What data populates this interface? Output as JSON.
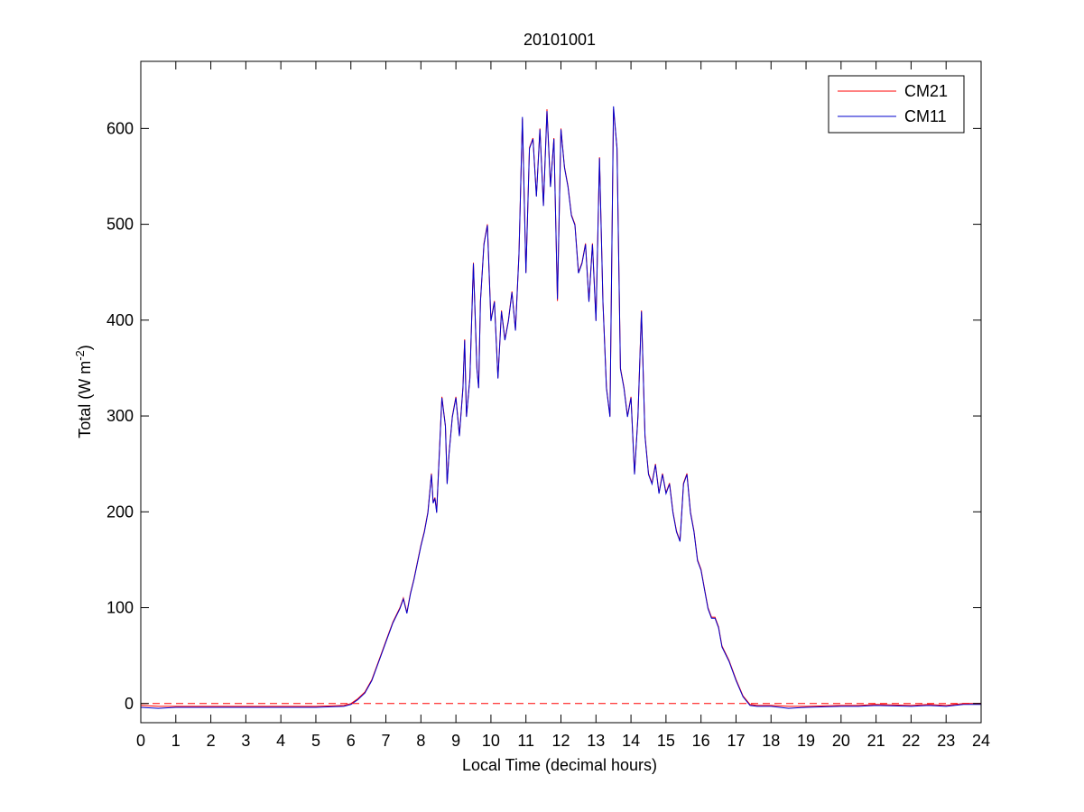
{
  "chart_data": {
    "type": "line",
    "title": "20101001",
    "xlabel": "Local Time (decimal hours)",
    "ylabel": "Total (W m",
    "ylabel_sup": "-2",
    "ylabel_close": ")",
    "xlim": [
      0,
      24
    ],
    "ylim": [
      -20,
      670
    ],
    "xticks": [
      "0",
      "1",
      "2",
      "3",
      "4",
      "5",
      "6",
      "7",
      "8",
      "9",
      "10",
      "11",
      "12",
      "13",
      "14",
      "15",
      "16",
      "17",
      "18",
      "19",
      "20",
      "21",
      "22",
      "23",
      "24"
    ],
    "yticks": [
      "0",
      "100",
      "200",
      "300",
      "400",
      "500",
      "600"
    ],
    "grid": false,
    "legend_position": "top-right",
    "reference_line": {
      "y": 0,
      "style": "dashed",
      "color": "#ff0000"
    },
    "series": [
      {
        "name": "CM21",
        "color": "#ff0000",
        "x": [
          0,
          0.5,
          1,
          2,
          3,
          4,
          5,
          5.8,
          6.0,
          6.2,
          6.4,
          6.6,
          6.8,
          7.0,
          7.2,
          7.4,
          7.5,
          7.6,
          7.7,
          7.8,
          8.0,
          8.1,
          8.2,
          8.3,
          8.35,
          8.4,
          8.45,
          8.5,
          8.6,
          8.7,
          8.75,
          8.8,
          8.9,
          9.0,
          9.1,
          9.2,
          9.25,
          9.3,
          9.4,
          9.5,
          9.6,
          9.65,
          9.7,
          9.8,
          9.9,
          10.0,
          10.1,
          10.2,
          10.3,
          10.4,
          10.5,
          10.6,
          10.7,
          10.8,
          10.9,
          11.0,
          11.1,
          11.2,
          11.3,
          11.4,
          11.5,
          11.6,
          11.7,
          11.8,
          11.9,
          12.0,
          12.1,
          12.2,
          12.3,
          12.4,
          12.5,
          12.6,
          12.7,
          12.8,
          12.9,
          13.0,
          13.1,
          13.2,
          13.3,
          13.4,
          13.5,
          13.6,
          13.7,
          13.8,
          13.9,
          14.0,
          14.1,
          14.2,
          14.3,
          14.4,
          14.5,
          14.6,
          14.7,
          14.8,
          14.9,
          15.0,
          15.1,
          15.2,
          15.3,
          15.4,
          15.5,
          15.6,
          15.7,
          15.8,
          15.9,
          16.0,
          16.1,
          16.2,
          16.3,
          16.4,
          16.5,
          16.6,
          16.8,
          17.0,
          17.2,
          17.4,
          17.6,
          17.8,
          18.0,
          18.5,
          19,
          20,
          20.5,
          21,
          22,
          22.5,
          23,
          23.5,
          24
        ],
        "values": [
          -2,
          -3,
          -3,
          -3,
          -3,
          -3,
          -3,
          -2,
          0,
          5,
          12,
          25,
          45,
          65,
          85,
          100,
          110,
          95,
          115,
          130,
          165,
          180,
          200,
          240,
          210,
          215,
          200,
          240,
          320,
          290,
          230,
          260,
          300,
          320,
          280,
          330,
          380,
          300,
          340,
          460,
          350,
          330,
          420,
          480,
          500,
          400,
          420,
          340,
          410,
          380,
          400,
          430,
          390,
          470,
          610,
          450,
          580,
          590,
          530,
          600,
          520,
          620,
          540,
          590,
          420,
          600,
          560,
          540,
          510,
          500,
          450,
          460,
          480,
          420,
          480,
          400,
          570,
          420,
          330,
          300,
          620,
          580,
          350,
          330,
          300,
          320,
          240,
          300,
          410,
          280,
          240,
          230,
          250,
          220,
          240,
          220,
          230,
          200,
          180,
          170,
          230,
          240,
          200,
          180,
          150,
          140,
          120,
          100,
          90,
          90,
          80,
          60,
          45,
          25,
          8,
          -1,
          -2,
          -2,
          -2,
          -3,
          -3,
          -2,
          -2,
          -1,
          -2,
          -1,
          -2,
          0,
          0
        ]
      },
      {
        "name": "CM11",
        "color": "#0000cc",
        "x": [
          0,
          0.5,
          1,
          2,
          3,
          4,
          5,
          5.8,
          6.0,
          6.2,
          6.4,
          6.6,
          6.8,
          7.0,
          7.2,
          7.4,
          7.5,
          7.6,
          7.7,
          7.8,
          8.0,
          8.1,
          8.2,
          8.3,
          8.35,
          8.4,
          8.45,
          8.5,
          8.6,
          8.7,
          8.75,
          8.8,
          8.9,
          9.0,
          9.1,
          9.2,
          9.25,
          9.3,
          9.4,
          9.5,
          9.6,
          9.65,
          9.7,
          9.8,
          9.9,
          10.0,
          10.1,
          10.2,
          10.3,
          10.4,
          10.5,
          10.6,
          10.7,
          10.8,
          10.9,
          11.0,
          11.1,
          11.2,
          11.3,
          11.4,
          11.5,
          11.6,
          11.7,
          11.8,
          11.9,
          12.0,
          12.1,
          12.2,
          12.3,
          12.4,
          12.5,
          12.6,
          12.7,
          12.8,
          12.9,
          13.0,
          13.1,
          13.2,
          13.3,
          13.4,
          13.5,
          13.6,
          13.7,
          13.8,
          13.9,
          14.0,
          14.1,
          14.2,
          14.3,
          14.4,
          14.5,
          14.6,
          14.7,
          14.8,
          14.9,
          15.0,
          15.1,
          15.2,
          15.3,
          15.4,
          15.5,
          15.6,
          15.7,
          15.8,
          15.9,
          16.0,
          16.1,
          16.2,
          16.3,
          16.4,
          16.5,
          16.6,
          16.8,
          17.0,
          17.2,
          17.4,
          17.6,
          17.8,
          18.0,
          18.5,
          19,
          20,
          20.5,
          21,
          22,
          22.5,
          23,
          23.5,
          24
        ],
        "values": [
          -4,
          -5,
          -4,
          -4,
          -4,
          -4,
          -4,
          -3,
          -1,
          4,
          11,
          24,
          44,
          64,
          84,
          99,
          109,
          94,
          114,
          129,
          164,
          179,
          199,
          239,
          209,
          214,
          199,
          239,
          319,
          289,
          229,
          259,
          299,
          319,
          279,
          329,
          379,
          299,
          339,
          459,
          349,
          329,
          419,
          479,
          499,
          399,
          419,
          339,
          409,
          379,
          399,
          429,
          389,
          469,
          612,
          449,
          579,
          589,
          529,
          599,
          519,
          618,
          539,
          589,
          422,
          599,
          559,
          539,
          509,
          499,
          449,
          459,
          479,
          419,
          479,
          399,
          569,
          419,
          329,
          299,
          623,
          579,
          349,
          329,
          299,
          319,
          239,
          299,
          409,
          279,
          239,
          229,
          249,
          219,
          239,
          219,
          229,
          199,
          179,
          169,
          229,
          239,
          199,
          179,
          149,
          139,
          119,
          99,
          89,
          89,
          79,
          59,
          44,
          24,
          7,
          -2,
          -3,
          -3,
          -3,
          -5,
          -4,
          -3,
          -3,
          -2,
          -3,
          -2,
          -3,
          -1,
          -1
        ]
      }
    ]
  }
}
